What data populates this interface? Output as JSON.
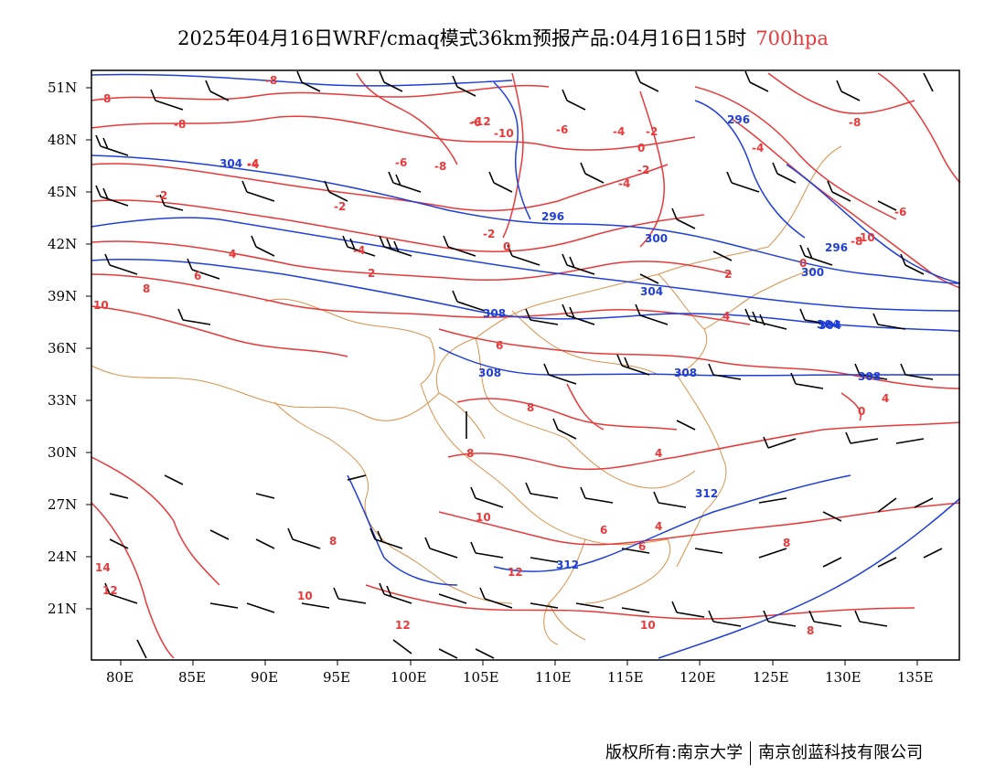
{
  "title": {
    "main": "2025年04月16日WRF/cmaq模式36km预报产品:04月16日15时",
    "level": "700hpa"
  },
  "colors": {
    "temperature_contour": "#e8393a",
    "height_contour": "#1f3fd8",
    "boundary": "#d9924a",
    "wind_barb": "#000000",
    "frame": "#000000"
  },
  "axes": {
    "lat_labels": [
      "51N",
      "48N",
      "45N",
      "42N",
      "39N",
      "36N",
      "33N",
      "30N",
      "27N",
      "24N",
      "21N"
    ],
    "lon_labels": [
      "80E",
      "85E",
      "90E",
      "95E",
      "100E",
      "105E",
      "110E",
      "115E",
      "120E",
      "125E",
      "130E",
      "135E"
    ]
  },
  "temperature_labels": [
    "-8",
    "-8",
    "-8",
    "-4",
    "-2",
    "-2",
    "-4",
    "-6",
    "-8",
    "-12",
    "-10",
    "-6",
    "-4",
    "-2",
    "0",
    "-2",
    "-8",
    "-4",
    "-6",
    "-8",
    "-10",
    "-4",
    "-2",
    "0",
    "2",
    "4",
    "6",
    "8",
    "10",
    "12",
    "14",
    "-6",
    "-4",
    "4",
    "6",
    "8",
    "10",
    "12",
    "2",
    "0",
    "4",
    "6",
    "8",
    "10",
    "8",
    "4",
    "0",
    "10",
    "12",
    "4",
    "8",
    "6",
    "8"
  ],
  "height_labels": [
    "304",
    "296",
    "296",
    "300",
    "304",
    "308",
    "308",
    "308",
    "304",
    "300",
    "296",
    "312",
    "312",
    "304",
    "308"
  ],
  "footer": {
    "copyright": "版权所有:南京大学",
    "company": "南京创蓝科技有限公司"
  }
}
